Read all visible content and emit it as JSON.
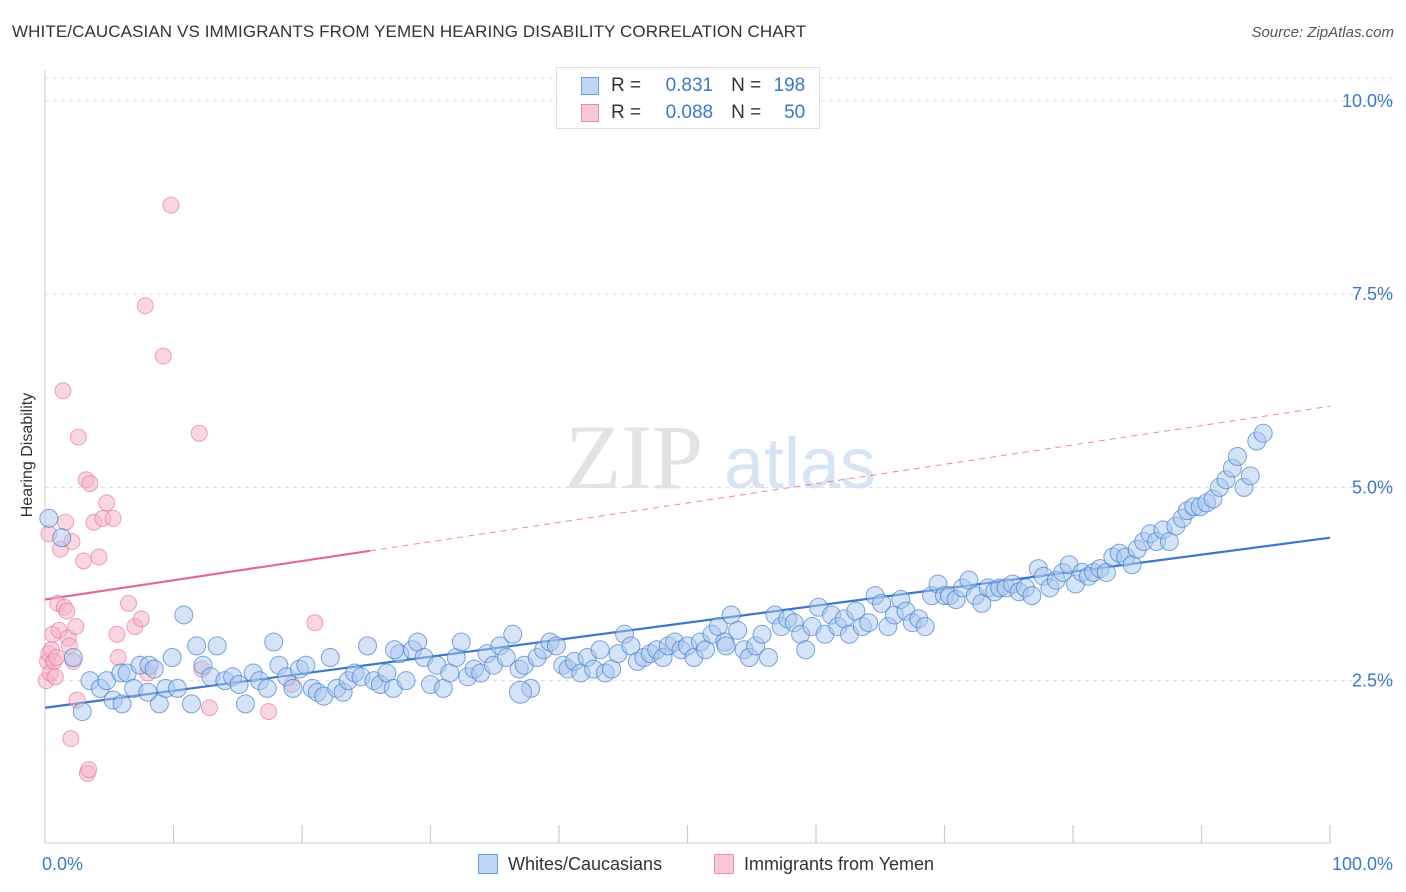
{
  "title": "WHITE/CAUCASIAN VS IMMIGRANTS FROM YEMEN HEARING DISABILITY CORRELATION CHART",
  "source": "Source: ZipAtlas.com",
  "watermark": {
    "zip": "ZIP",
    "atlas": "atlas"
  },
  "colors": {
    "blue": "#3a78c9",
    "blue_fill": "#a9c8ef",
    "pink": "#e56a93",
    "pink_fill": "#f5b5c8",
    "grid": "#dddddd",
    "axis_text": "#3a78c9"
  },
  "legend_top": {
    "r_label": "R =",
    "n_label": "N =",
    "rows": [
      {
        "series": "Whites/Caucasians",
        "r": "0.831",
        "n": "198"
      },
      {
        "series": "Immigrants from Yemen",
        "r": "0.088",
        "n": "50"
      }
    ]
  },
  "bottom_legend": [
    "Whites/Caucasians",
    "Immigrants from Yemen"
  ],
  "chart_data": {
    "type": "scatter",
    "title": "WHITE/CAUCASIAN VS IMMIGRANTS FROM YEMEN HEARING DISABILITY CORRELATION CHART",
    "xlabel": "",
    "ylabel": "Hearing Disability",
    "xlim": [
      0,
      100
    ],
    "ylim": [
      0.4,
      10.4
    ],
    "x_tick_labels": [
      "0.0%",
      "100.0%"
    ],
    "y_ticks": [
      2.5,
      5.0,
      7.5,
      10.0
    ],
    "y_tick_labels": [
      "2.5%",
      "5.0%",
      "7.5%",
      "10.0%"
    ],
    "grid": "horizontal dashed",
    "legend_position": "top-center",
    "series": [
      {
        "name": "Whites/Caucasians",
        "color": "#3a78c9",
        "trend": {
          "x": [
            0,
            100
          ],
          "y": [
            2.15,
            4.35
          ],
          "style": "solid"
        },
        "points": [
          [
            0.3,
            4.6
          ],
          [
            1.3,
            4.35
          ],
          [
            2.2,
            2.8
          ],
          [
            2.9,
            2.1
          ],
          [
            3.5,
            2.5
          ],
          [
            4.3,
            2.4
          ],
          [
            4.8,
            2.5
          ],
          [
            5.3,
            2.25
          ],
          [
            5.9,
            2.6
          ],
          [
            6.4,
            2.6
          ],
          [
            6.9,
            2.4
          ],
          [
            7.4,
            2.7
          ],
          [
            8.1,
            2.7
          ],
          [
            8.5,
            2.65
          ],
          [
            8.9,
            2.2
          ],
          [
            9.4,
            2.4
          ],
          [
            9.9,
            2.8
          ],
          [
            10.3,
            2.4
          ],
          [
            10.8,
            3.35
          ],
          [
            11.4,
            2.2
          ],
          [
            11.8,
            2.95
          ],
          [
            12.3,
            2.7
          ],
          [
            12.9,
            2.55
          ],
          [
            13.4,
            2.95
          ],
          [
            14.0,
            2.5
          ],
          [
            14.6,
            2.55
          ],
          [
            15.1,
            2.45
          ],
          [
            15.6,
            2.2
          ],
          [
            16.2,
            2.6
          ],
          [
            16.7,
            2.5
          ],
          [
            17.3,
            2.4
          ],
          [
            17.8,
            3.0
          ],
          [
            18.2,
            2.7
          ],
          [
            18.8,
            2.55
          ],
          [
            19.3,
            2.4
          ],
          [
            19.8,
            2.65
          ],
          [
            20.3,
            2.7
          ],
          [
            20.8,
            2.4
          ],
          [
            21.2,
            2.35
          ],
          [
            21.7,
            2.3
          ],
          [
            22.2,
            2.8
          ],
          [
            22.7,
            2.4
          ],
          [
            23.2,
            2.35
          ],
          [
            23.6,
            2.5
          ],
          [
            24.1,
            2.6
          ],
          [
            24.6,
            2.55
          ],
          [
            25.1,
            2.95
          ],
          [
            25.6,
            2.5
          ],
          [
            26.1,
            2.45
          ],
          [
            26.6,
            2.6
          ],
          [
            27.1,
            2.4
          ],
          [
            27.6,
            2.85
          ],
          [
            28.1,
            2.5
          ],
          [
            28.6,
            2.9
          ],
          [
            29.0,
            3.0
          ],
          [
            29.5,
            2.8
          ],
          [
            30.0,
            2.45
          ],
          [
            30.5,
            2.7
          ],
          [
            31.0,
            2.4
          ],
          [
            31.5,
            2.6
          ],
          [
            32.0,
            2.8
          ],
          [
            32.4,
            3.0
          ],
          [
            32.9,
            2.55
          ],
          [
            33.4,
            2.65
          ],
          [
            33.9,
            2.6
          ],
          [
            34.4,
            2.85
          ],
          [
            34.9,
            2.7
          ],
          [
            35.4,
            2.95
          ],
          [
            35.9,
            2.8
          ],
          [
            36.4,
            3.1
          ],
          [
            36.9,
            2.65
          ],
          [
            37.3,
            2.7
          ],
          [
            37.8,
            2.4
          ],
          [
            38.3,
            2.8
          ],
          [
            38.8,
            2.9
          ],
          [
            39.3,
            3.0
          ],
          [
            39.8,
            2.95
          ],
          [
            40.3,
            2.7
          ],
          [
            40.7,
            2.65
          ],
          [
            41.2,
            2.75
          ],
          [
            41.7,
            2.6
          ],
          [
            42.2,
            2.8
          ],
          [
            42.7,
            2.65
          ],
          [
            43.2,
            2.9
          ],
          [
            43.6,
            2.6
          ],
          [
            44.1,
            2.65
          ],
          [
            44.6,
            2.85
          ],
          [
            45.1,
            3.1
          ],
          [
            45.6,
            2.95
          ],
          [
            46.1,
            2.75
          ],
          [
            46.6,
            2.8
          ],
          [
            47.1,
            2.85
          ],
          [
            47.6,
            2.9
          ],
          [
            48.1,
            2.8
          ],
          [
            48.5,
            2.95
          ],
          [
            49.0,
            3.0
          ],
          [
            49.5,
            2.9
          ],
          [
            50.0,
            2.95
          ],
          [
            50.5,
            2.8
          ],
          [
            51.0,
            3.0
          ],
          [
            51.4,
            2.9
          ],
          [
            51.9,
            3.1
          ],
          [
            52.4,
            3.2
          ],
          [
            52.9,
            3.0
          ],
          [
            53.4,
            3.35
          ],
          [
            53.9,
            3.15
          ],
          [
            54.4,
            2.9
          ],
          [
            54.8,
            2.8
          ],
          [
            55.3,
            2.95
          ],
          [
            55.8,
            3.1
          ],
          [
            56.3,
            2.8
          ],
          [
            56.8,
            3.35
          ],
          [
            57.3,
            3.2
          ],
          [
            57.8,
            3.3
          ],
          [
            58.3,
            3.25
          ],
          [
            58.8,
            3.1
          ],
          [
            59.2,
            2.9
          ],
          [
            59.7,
            3.2
          ],
          [
            60.2,
            3.45
          ],
          [
            60.7,
            3.1
          ],
          [
            61.2,
            3.35
          ],
          [
            61.7,
            3.2
          ],
          [
            62.2,
            3.3
          ],
          [
            62.6,
            3.1
          ],
          [
            63.1,
            3.4
          ],
          [
            63.6,
            3.2
          ],
          [
            64.1,
            3.25
          ],
          [
            64.6,
            3.6
          ],
          [
            65.1,
            3.5
          ],
          [
            65.6,
            3.2
          ],
          [
            66.1,
            3.35
          ],
          [
            66.6,
            3.55
          ],
          [
            67.0,
            3.4
          ],
          [
            67.5,
            3.25
          ],
          [
            68.0,
            3.3
          ],
          [
            68.5,
            3.2
          ],
          [
            69.0,
            3.6
          ],
          [
            69.5,
            3.75
          ],
          [
            70.0,
            3.6
          ],
          [
            70.4,
            3.6
          ],
          [
            70.9,
            3.55
          ],
          [
            71.4,
            3.7
          ],
          [
            71.9,
            3.8
          ],
          [
            72.4,
            3.6
          ],
          [
            72.9,
            3.5
          ],
          [
            73.4,
            3.7
          ],
          [
            73.9,
            3.65
          ],
          [
            74.3,
            3.7
          ],
          [
            74.8,
            3.7
          ],
          [
            75.3,
            3.75
          ],
          [
            75.8,
            3.65
          ],
          [
            76.3,
            3.7
          ],
          [
            76.8,
            3.6
          ],
          [
            77.3,
            3.95
          ],
          [
            77.7,
            3.85
          ],
          [
            78.2,
            3.7
          ],
          [
            78.7,
            3.8
          ],
          [
            79.2,
            3.9
          ],
          [
            79.7,
            4.0
          ],
          [
            80.2,
            3.75
          ],
          [
            80.7,
            3.9
          ],
          [
            81.2,
            3.85
          ],
          [
            81.6,
            3.9
          ],
          [
            82.1,
            3.95
          ],
          [
            82.6,
            3.9
          ],
          [
            83.1,
            4.1
          ],
          [
            83.6,
            4.15
          ],
          [
            84.1,
            4.1
          ],
          [
            84.6,
            4.0
          ],
          [
            85.0,
            4.2
          ],
          [
            85.5,
            4.3
          ],
          [
            86.0,
            4.4
          ],
          [
            86.5,
            4.3
          ],
          [
            87.0,
            4.45
          ],
          [
            87.5,
            4.3
          ],
          [
            88.0,
            4.5
          ],
          [
            88.5,
            4.6
          ],
          [
            88.9,
            4.7
          ],
          [
            89.4,
            4.75
          ],
          [
            89.9,
            4.75
          ],
          [
            90.4,
            4.8
          ],
          [
            90.9,
            4.85
          ],
          [
            91.4,
            5.0
          ],
          [
            91.9,
            5.1
          ],
          [
            92.4,
            5.25
          ],
          [
            92.8,
            5.4
          ],
          [
            93.3,
            5.0
          ],
          [
            93.8,
            5.15
          ],
          [
            94.3,
            5.6
          ],
          [
            94.8,
            5.7
          ],
          [
            37.0,
            2.35
          ],
          [
            6.0,
            2.2
          ],
          [
            8.0,
            2.35
          ],
          [
            27.2,
            2.9
          ],
          [
            53.0,
            2.95
          ]
        ]
      },
      {
        "name": "Immigrants from Yemen",
        "color": "#e56a93",
        "trend": {
          "x": [
            0,
            25.3,
            100
          ],
          "y": [
            3.55,
            4.18,
            6.05
          ],
          "style": "solid-then-dashed"
        },
        "points": [
          [
            0.1,
            2.5
          ],
          [
            0.2,
            2.75
          ],
          [
            0.3,
            2.85
          ],
          [
            0.4,
            2.6
          ],
          [
            0.5,
            2.9
          ],
          [
            0.6,
            3.1
          ],
          [
            0.7,
            2.75
          ],
          [
            0.8,
            2.55
          ],
          [
            0.9,
            2.8
          ],
          [
            1.0,
            3.5
          ],
          [
            1.1,
            3.15
          ],
          [
            1.2,
            4.2
          ],
          [
            1.4,
            6.25
          ],
          [
            1.5,
            3.45
          ],
          [
            1.6,
            4.55
          ],
          [
            1.7,
            3.4
          ],
          [
            1.8,
            3.05
          ],
          [
            2.0,
            1.75
          ],
          [
            2.1,
            4.3
          ],
          [
            2.2,
            2.75
          ],
          [
            2.4,
            3.2
          ],
          [
            2.5,
            2.25
          ],
          [
            2.6,
            5.65
          ],
          [
            3.0,
            4.05
          ],
          [
            3.2,
            5.1
          ],
          [
            3.3,
            1.3
          ],
          [
            3.4,
            1.35
          ],
          [
            3.5,
            5.05
          ],
          [
            3.8,
            4.55
          ],
          [
            4.2,
            4.1
          ],
          [
            4.5,
            4.6
          ],
          [
            4.8,
            4.8
          ],
          [
            5.3,
            4.6
          ],
          [
            5.6,
            3.1
          ],
          [
            5.7,
            2.8
          ],
          [
            6.5,
            3.5
          ],
          [
            7.0,
            3.2
          ],
          [
            7.5,
            3.3
          ],
          [
            7.8,
            7.35
          ],
          [
            8.0,
            2.6
          ],
          [
            9.2,
            6.7
          ],
          [
            9.8,
            8.65
          ],
          [
            12.0,
            5.7
          ],
          [
            12.2,
            2.65
          ],
          [
            12.8,
            2.15
          ],
          [
            17.4,
            2.1
          ],
          [
            19.2,
            2.45
          ],
          [
            21.0,
            3.25
          ],
          [
            0.3,
            4.4
          ],
          [
            1.9,
            2.95
          ]
        ]
      }
    ]
  }
}
